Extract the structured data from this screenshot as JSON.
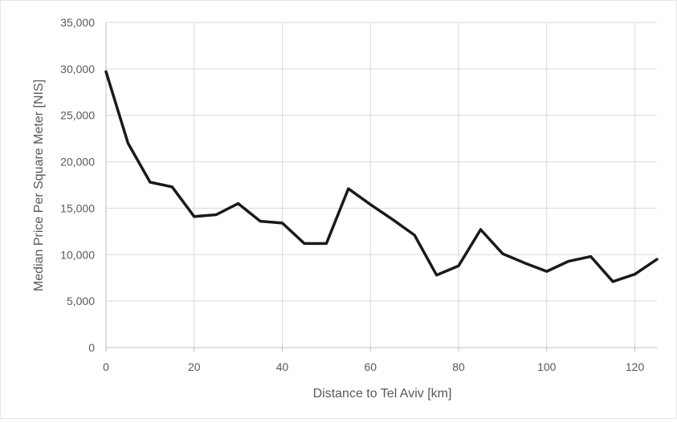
{
  "chart_data": {
    "type": "line",
    "title": "",
    "xlabel": "Distance to Tel Aviv [km]",
    "ylabel": "Median Price Per Square Meter [NIS]",
    "xlim": [
      0,
      125
    ],
    "ylim": [
      0,
      35000
    ],
    "x_ticks": [
      0,
      20,
      40,
      60,
      80,
      100,
      120
    ],
    "x_tick_labels": [
      "0",
      "20",
      "40",
      "60",
      "80",
      "100",
      "120"
    ],
    "y_ticks": [
      0,
      5000,
      10000,
      15000,
      20000,
      25000,
      30000,
      35000
    ],
    "y_tick_labels": [
      "0",
      "5,000",
      "10,000",
      "15,000",
      "20,000",
      "25,000",
      "30,000",
      "35,000"
    ],
    "grid": true,
    "legend": "none",
    "colors": {
      "line": "#1a1a1a",
      "grid": "#d9d9d9",
      "axis": "#bfbfbf",
      "text": "#595959"
    },
    "series": [
      {
        "x": [
          0,
          5,
          10,
          15,
          20,
          25,
          30,
          35,
          40,
          45,
          50,
          55,
          60,
          65,
          70,
          75,
          80,
          85,
          90,
          95,
          100,
          105,
          110,
          115,
          120,
          125
        ],
        "values": [
          29700,
          22000,
          17800,
          17300,
          14100,
          14300,
          15500,
          13600,
          13400,
          11200,
          11200,
          17100,
          15400,
          13800,
          12100,
          7800,
          8800,
          12700,
          10100,
          9100,
          8200,
          9300,
          9800,
          7100,
          7900,
          9500
        ]
      }
    ]
  }
}
